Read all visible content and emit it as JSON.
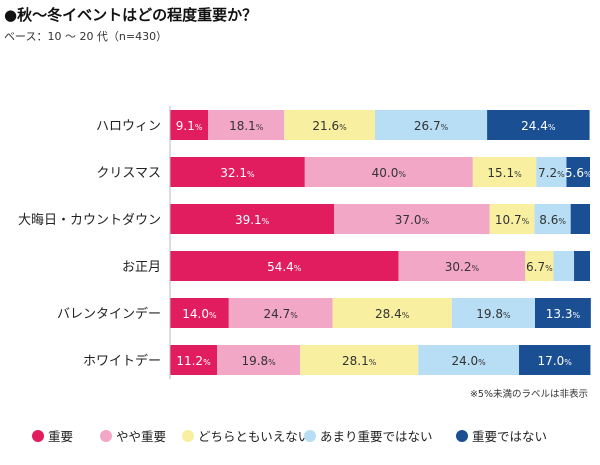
{
  "header": {
    "title": "●秋〜冬イベントはどの程度重要か？",
    "subtitle": "ベース：10 〜 20 代（n=430）"
  },
  "note": "※5%未満のラベルは非表示",
  "chart_data": {
    "type": "bar",
    "orientation": "horizontal",
    "stacked": true,
    "percent_scale": true,
    "value_suffix": "%",
    "label_threshold": 5,
    "xlim": [
      0,
      100
    ],
    "grid": false,
    "legend_position": "bottom",
    "categories": [
      "ハロウィン",
      "クリスマス",
      "大晦日・カウントダウン",
      "お正月",
      "バレンタインデー",
      "ホワイトデー"
    ],
    "series": [
      {
        "name": "重要",
        "color": "#e21d5f",
        "label_color": "#ffffff",
        "values": [
          9.1,
          32.1,
          39.1,
          54.4,
          14.0,
          11.2
        ]
      },
      {
        "name": "やや重要",
        "color": "#f2a7c6",
        "label_color": "#333333",
        "values": [
          18.1,
          40.0,
          37.0,
          30.2,
          24.7,
          19.8
        ]
      },
      {
        "name": "どちらともいえない",
        "color": "#f8f0a0",
        "label_color": "#333333",
        "values": [
          21.6,
          15.1,
          10.7,
          6.7,
          28.4,
          28.1
        ]
      },
      {
        "name": "あまり重要ではない",
        "color": "#b7def4",
        "label_color": "#333333",
        "values": [
          26.7,
          7.2,
          8.6,
          4.9,
          19.8,
          24.0
        ]
      },
      {
        "name": "重要ではない",
        "color": "#1a4f94",
        "label_color": "#ffffff",
        "values": [
          24.4,
          5.6,
          4.6,
          3.8,
          13.3,
          17.0
        ]
      }
    ]
  }
}
